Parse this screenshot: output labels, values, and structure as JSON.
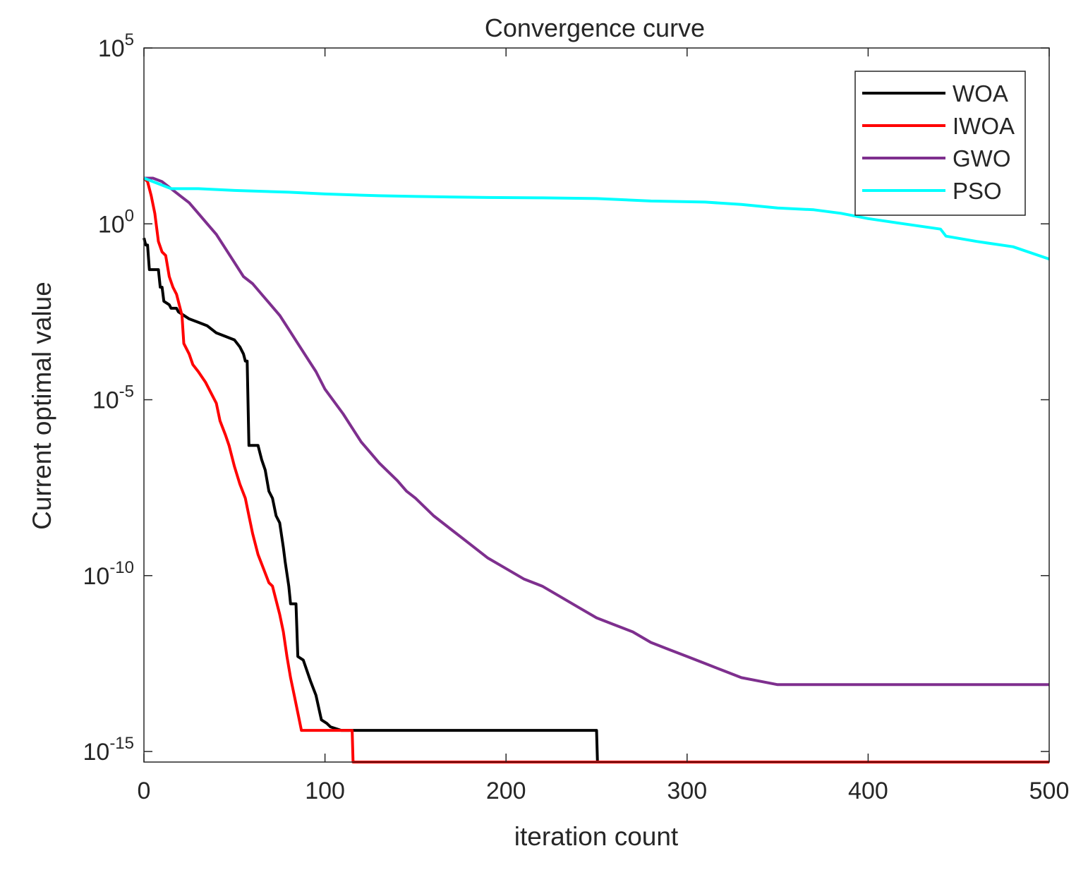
{
  "chart_data": {
    "type": "line",
    "title": "Convergence curve",
    "xlabel": "iteration count",
    "ylabel": "Current optimal value",
    "yscale": "log",
    "xlim": [
      0,
      500
    ],
    "ylim_exponent": [
      -15.3,
      5
    ],
    "x_ticks": [
      0,
      100,
      200,
      300,
      400,
      500
    ],
    "x_tick_labels": [
      "0",
      "100",
      "200",
      "300",
      "400",
      "500"
    ],
    "y_ticks": [
      {
        "exp": 5,
        "base": "10",
        "sup": "5"
      },
      {
        "exp": 0,
        "base": "10",
        "sup": "0"
      },
      {
        "exp": -5,
        "base": "10",
        "sup": "-5"
      },
      {
        "exp": -10,
        "base": "10",
        "sup": "-10"
      },
      {
        "exp": -15,
        "base": "10",
        "sup": "-15"
      }
    ],
    "legend_position": "top-right",
    "series": [
      {
        "name": "WOA",
        "color": "#000000",
        "x_log10y": [
          [
            0,
            -0.4
          ],
          [
            1,
            -0.6
          ],
          [
            2,
            -0.6
          ],
          [
            3,
            -1.3
          ],
          [
            8,
            -1.3
          ],
          [
            9,
            -1.8
          ],
          [
            10,
            -1.8
          ],
          [
            11,
            -2.2
          ],
          [
            14,
            -2.3
          ],
          [
            15,
            -2.4
          ],
          [
            18,
            -2.4
          ],
          [
            19,
            -2.5
          ],
          [
            25,
            -2.7
          ],
          [
            30,
            -2.8
          ],
          [
            35,
            -2.9
          ],
          [
            40,
            -3.1
          ],
          [
            45,
            -3.2
          ],
          [
            50,
            -3.3
          ],
          [
            53,
            -3.5
          ],
          [
            55,
            -3.7
          ],
          [
            56,
            -3.9
          ],
          [
            57,
            -3.9
          ],
          [
            58,
            -6.3
          ],
          [
            63,
            -6.3
          ],
          [
            65,
            -6.7
          ],
          [
            67,
            -7.0
          ],
          [
            69,
            -7.6
          ],
          [
            71,
            -7.8
          ],
          [
            73,
            -8.3
          ],
          [
            75,
            -8.5
          ],
          [
            77,
            -9.2
          ],
          [
            78,
            -9.6
          ],
          [
            80,
            -10.3
          ],
          [
            81,
            -10.8
          ],
          [
            84,
            -10.8
          ],
          [
            85,
            -12.3
          ],
          [
            88,
            -12.4
          ],
          [
            92,
            -13.0
          ],
          [
            95,
            -13.4
          ],
          [
            98,
            -14.1
          ],
          [
            101,
            -14.2
          ],
          [
            103,
            -14.3
          ],
          [
            109,
            -14.4
          ],
          [
            250,
            -14.4
          ],
          [
            250.5,
            -15.3
          ],
          [
            500,
            -15.3
          ]
        ]
      },
      {
        "name": "IWOA",
        "color": "#ff0000",
        "x_log10y": [
          [
            0,
            1.3
          ],
          [
            2,
            1.2
          ],
          [
            4,
            0.8
          ],
          [
            6,
            0.3
          ],
          [
            8,
            -0.5
          ],
          [
            10,
            -0.8
          ],
          [
            12,
            -0.9
          ],
          [
            14,
            -1.5
          ],
          [
            16,
            -1.8
          ],
          [
            18,
            -2.0
          ],
          [
            21,
            -2.6
          ],
          [
            22,
            -3.4
          ],
          [
            25,
            -3.7
          ],
          [
            27,
            -4.0
          ],
          [
            30,
            -4.2
          ],
          [
            34,
            -4.5
          ],
          [
            37,
            -4.8
          ],
          [
            40,
            -5.1
          ],
          [
            42,
            -5.6
          ],
          [
            45,
            -6.0
          ],
          [
            47,
            -6.3
          ],
          [
            50,
            -6.9
          ],
          [
            53,
            -7.4
          ],
          [
            56,
            -7.8
          ],
          [
            58,
            -8.3
          ],
          [
            60,
            -8.8
          ],
          [
            63,
            -9.4
          ],
          [
            66,
            -9.8
          ],
          [
            69,
            -10.2
          ],
          [
            71,
            -10.3
          ],
          [
            73,
            -10.7
          ],
          [
            75,
            -11.1
          ],
          [
            77,
            -11.6
          ],
          [
            79,
            -12.3
          ],
          [
            81,
            -12.9
          ],
          [
            83,
            -13.4
          ],
          [
            85,
            -13.9
          ],
          [
            87,
            -14.4
          ],
          [
            90,
            -14.4
          ],
          [
            115,
            -14.4
          ],
          [
            115.5,
            -15.3
          ],
          [
            500,
            -15.3
          ]
        ]
      },
      {
        "name": "GWO",
        "color": "#7e2f8e",
        "x_log10y": [
          [
            0,
            1.3
          ],
          [
            5,
            1.3
          ],
          [
            10,
            1.2
          ],
          [
            15,
            1.0
          ],
          [
            20,
            0.8
          ],
          [
            25,
            0.6
          ],
          [
            30,
            0.3
          ],
          [
            35,
            0.0
          ],
          [
            40,
            -0.3
          ],
          [
            45,
            -0.7
          ],
          [
            50,
            -1.1
          ],
          [
            55,
            -1.5
          ],
          [
            60,
            -1.7
          ],
          [
            65,
            -2.0
          ],
          [
            70,
            -2.3
          ],
          [
            75,
            -2.6
          ],
          [
            80,
            -3.0
          ],
          [
            85,
            -3.4
          ],
          [
            90,
            -3.8
          ],
          [
            95,
            -4.2
          ],
          [
            100,
            -4.7
          ],
          [
            110,
            -5.4
          ],
          [
            115,
            -5.8
          ],
          [
            120,
            -6.2
          ],
          [
            125,
            -6.5
          ],
          [
            130,
            -6.8
          ],
          [
            140,
            -7.3
          ],
          [
            145,
            -7.6
          ],
          [
            150,
            -7.8
          ],
          [
            160,
            -8.3
          ],
          [
            170,
            -8.7
          ],
          [
            180,
            -9.1
          ],
          [
            190,
            -9.5
          ],
          [
            200,
            -9.8
          ],
          [
            210,
            -10.1
          ],
          [
            220,
            -10.3
          ],
          [
            230,
            -10.6
          ],
          [
            240,
            -10.9
          ],
          [
            250,
            -11.2
          ],
          [
            260,
            -11.4
          ],
          [
            270,
            -11.6
          ],
          [
            280,
            -11.9
          ],
          [
            290,
            -12.1
          ],
          [
            300,
            -12.3
          ],
          [
            310,
            -12.5
          ],
          [
            320,
            -12.7
          ],
          [
            330,
            -12.9
          ],
          [
            340,
            -13.0
          ],
          [
            350,
            -13.1
          ],
          [
            400,
            -13.1
          ],
          [
            450,
            -13.1
          ],
          [
            500,
            -13.1
          ]
        ]
      },
      {
        "name": "PSO",
        "color": "#00ffff",
        "x_log10y": [
          [
            0,
            1.3
          ],
          [
            5,
            1.2
          ],
          [
            10,
            1.1
          ],
          [
            15,
            1.0
          ],
          [
            30,
            1.0
          ],
          [
            50,
            0.95
          ],
          [
            80,
            0.9
          ],
          [
            100,
            0.85
          ],
          [
            130,
            0.8
          ],
          [
            150,
            0.78
          ],
          [
            190,
            0.75
          ],
          [
            220,
            0.74
          ],
          [
            250,
            0.72
          ],
          [
            280,
            0.65
          ],
          [
            310,
            0.62
          ],
          [
            330,
            0.55
          ],
          [
            350,
            0.45
          ],
          [
            370,
            0.4
          ],
          [
            385,
            0.3
          ],
          [
            400,
            0.15
          ],
          [
            420,
            0.0
          ],
          [
            440,
            -0.15
          ],
          [
            443,
            -0.35
          ],
          [
            460,
            -0.5
          ],
          [
            480,
            -0.65
          ],
          [
            500,
            -1.0
          ]
        ]
      }
    ]
  }
}
